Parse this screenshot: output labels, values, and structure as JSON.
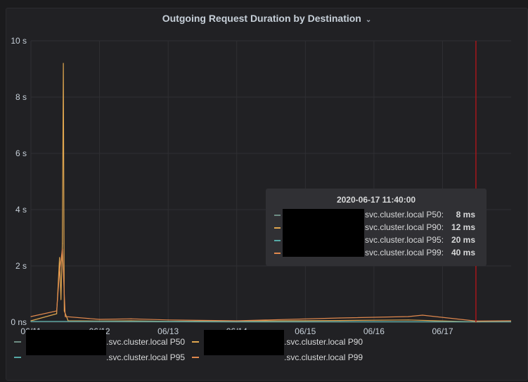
{
  "panel": {
    "title": "Outgoing Request Duration by Destination",
    "chevron_icon": "chevron-down-icon"
  },
  "colors": {
    "p50": "#6d8d83",
    "p90": "#e0a64f",
    "p95": "#56a9a6",
    "p99": "#e0884d",
    "grid": "#2f2f33",
    "marker": "#a4161a"
  },
  "chart_data": {
    "type": "line",
    "title": "Outgoing Request Duration by Destination",
    "xlabel": "",
    "ylabel": "",
    "x_range": [
      "2020-06-11",
      "2020-06-17T23:59"
    ],
    "y_range_seconds": [
      0,
      10
    ],
    "x_ticks": [
      "06/11",
      "06/12",
      "06/13",
      "06/14",
      "06/15",
      "06/16",
      "06/17"
    ],
    "y_ticks": [
      "0 ns",
      "2 s",
      "4 s",
      "6 s",
      "8 s",
      "10 s"
    ],
    "y_tick_values": [
      0,
      2,
      4,
      6,
      8,
      10
    ],
    "grid": true,
    "legend_placement": "bottom",
    "marker_time": "2020-06-17T11:40:00",
    "series": [
      {
        "name": "svc.cluster.local P50",
        "color_key": "p50",
        "points": [
          [
            "2020-06-11T00:00",
            0.02
          ],
          [
            "2020-06-12T00:00",
            0.02
          ],
          [
            "2020-06-14T00:00",
            0.01
          ],
          [
            "2020-06-17T11:40",
            0.008
          ],
          [
            "2020-06-17T23:50",
            0.01
          ]
        ]
      },
      {
        "name": "svc.cluster.local P90",
        "color_key": "p90",
        "points": [
          [
            "2020-06-11T00:00",
            0.05
          ],
          [
            "2020-06-11T09:00",
            0.3
          ],
          [
            "2020-06-11T10:00",
            2.3
          ],
          [
            "2020-06-11T10:30",
            0.8
          ],
          [
            "2020-06-11T11:00",
            2.8
          ],
          [
            "2020-06-11T11:20",
            9.2
          ],
          [
            "2020-06-11T11:40",
            0.4
          ],
          [
            "2020-06-11T13:00",
            0.05
          ],
          [
            "2020-06-12T00:00",
            0.04
          ],
          [
            "2020-06-12T11:00",
            0.05
          ],
          [
            "2020-06-13T00:00",
            0.03
          ],
          [
            "2020-06-15T12:00",
            0.06
          ],
          [
            "2020-06-16T12:00",
            0.08
          ],
          [
            "2020-06-17T11:40",
            0.012
          ],
          [
            "2020-06-17T23:50",
            0.03
          ]
        ]
      },
      {
        "name": "svc.cluster.local P95",
        "color_key": "p95",
        "points": [
          [
            "2020-06-11T00:00",
            0.03
          ],
          [
            "2020-06-12T00:00",
            0.03
          ],
          [
            "2020-06-14T00:00",
            0.02
          ],
          [
            "2020-06-17T11:40",
            0.02
          ],
          [
            "2020-06-17T23:50",
            0.02
          ]
        ]
      },
      {
        "name": "svc.cluster.local P99",
        "color_key": "p99",
        "points": [
          [
            "2020-06-11T00:00",
            0.2
          ],
          [
            "2020-06-11T09:00",
            0.4
          ],
          [
            "2020-06-11T10:00",
            1.8
          ],
          [
            "2020-06-11T11:00",
            2.6
          ],
          [
            "2020-06-11T12:00",
            0.2
          ],
          [
            "2020-06-12T00:00",
            0.1
          ],
          [
            "2020-06-12T11:00",
            0.12
          ],
          [
            "2020-06-13T00:00",
            0.08
          ],
          [
            "2020-06-14T00:00",
            0.05
          ],
          [
            "2020-06-15T12:00",
            0.15
          ],
          [
            "2020-06-16T12:00",
            0.2
          ],
          [
            "2020-06-16T17:00",
            0.25
          ],
          [
            "2020-06-17T11:40",
            0.04
          ],
          [
            "2020-06-17T23:50",
            0.05
          ]
        ]
      }
    ]
  },
  "legend": [
    {
      "label": ".svc.cluster.local P50",
      "color_key": "p50"
    },
    {
      "label": ".svc.cluster.local P90",
      "color_key": "p90"
    },
    {
      "label": ".svc.cluster.local P95",
      "color_key": "p95"
    },
    {
      "label": ".svc.cluster.local P99",
      "color_key": "p99"
    }
  ],
  "tooltip": {
    "time": "2020-06-17 11:40:00",
    "rows": [
      {
        "name": "svc.cluster.local P50:",
        "value": "8 ms",
        "color_key": "p50"
      },
      {
        "name": "svc.cluster.local P90:",
        "value": "12 ms",
        "color_key": "p90"
      },
      {
        "name": "svc.cluster.local P95:",
        "value": "20 ms",
        "color_key": "p95"
      },
      {
        "name": "svc.cluster.local P99:",
        "value": "40 ms",
        "color_key": "p99"
      }
    ]
  }
}
